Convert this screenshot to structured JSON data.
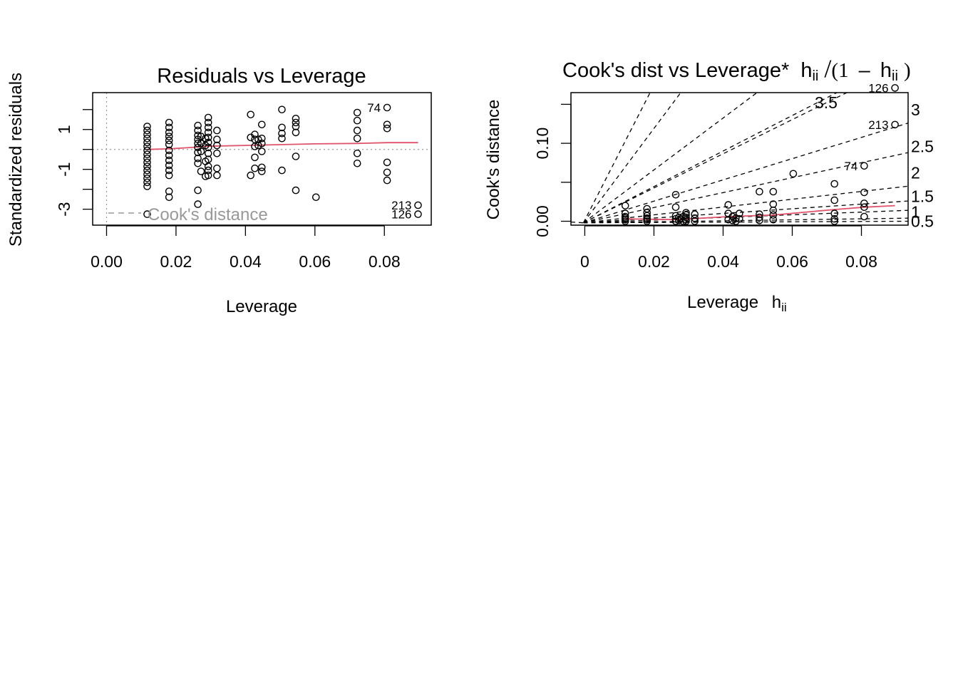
{
  "chart_data": [
    {
      "type": "scatter",
      "title": "Residuals vs Leverage",
      "xlabel": "Leverage",
      "ylabel": "Standardized residuals",
      "xlim": [
        -0.004,
        0.0935
      ],
      "ylim": [
        -3.8,
        2.85
      ],
      "xticks": [
        0,
        0.02,
        0.04,
        0.06,
        0.08
      ],
      "xtick_labels": [
        "0.00",
        "0.02",
        "0.04",
        "0.06",
        "0.08"
      ],
      "yticks": [
        -3,
        -2,
        -1,
        0,
        1,
        2
      ],
      "ytick_labels": {
        "-3": "-3",
        "-1": "-1",
        "1": "1"
      },
      "legend": {
        "text": "Cook's distance",
        "placement": "bottom-left",
        "color": "#999999"
      },
      "smooth_color": "#DF536B",
      "reference_line_color": "#999999",
      "points": [
        [
          0.0117,
          1.15
        ],
        [
          0.0117,
          0.95
        ],
        [
          0.0117,
          0.75
        ],
        [
          0.0117,
          0.55
        ],
        [
          0.0117,
          0.35
        ],
        [
          0.0117,
          0.15
        ],
        [
          0.0117,
          -0.05
        ],
        [
          0.0117,
          -0.25
        ],
        [
          0.0117,
          -0.45
        ],
        [
          0.0117,
          -0.65
        ],
        [
          0.0117,
          -0.85
        ],
        [
          0.0117,
          -1.05
        ],
        [
          0.0117,
          -1.25
        ],
        [
          0.0117,
          -1.45
        ],
        [
          0.0117,
          -1.65
        ],
        [
          0.0117,
          -1.85
        ],
        [
          0.0117,
          -3.25
        ],
        [
          0.018,
          1.35
        ],
        [
          0.018,
          1.1
        ],
        [
          0.018,
          0.85
        ],
        [
          0.018,
          0.65
        ],
        [
          0.018,
          0.45
        ],
        [
          0.018,
          0.25
        ],
        [
          0.018,
          -0.05
        ],
        [
          0.018,
          -0.3
        ],
        [
          0.018,
          -0.55
        ],
        [
          0.018,
          -0.8
        ],
        [
          0.018,
          -1.05
        ],
        [
          0.018,
          -1.3
        ],
        [
          0.018,
          -2.1
        ],
        [
          0.018,
          -2.4
        ],
        [
          0.0263,
          1.2
        ],
        [
          0.0263,
          0.95
        ],
        [
          0.0263,
          0.7
        ],
        [
          0.0263,
          0.5
        ],
        [
          0.0263,
          0.3
        ],
        [
          0.0263,
          0.1
        ],
        [
          0.0263,
          -0.15
        ],
        [
          0.0263,
          -0.45
        ],
        [
          0.0263,
          -0.7
        ],
        [
          0.0263,
          -2.05
        ],
        [
          0.0263,
          -2.75
        ],
        [
          0.0272,
          0.65
        ],
        [
          0.0272,
          0.3
        ],
        [
          0.0272,
          -0.1
        ],
        [
          0.0272,
          -1.1
        ],
        [
          0.0285,
          0.55
        ],
        [
          0.0285,
          0.2
        ],
        [
          0.0285,
          -0.6
        ],
        [
          0.0285,
          -1.35
        ],
        [
          0.0293,
          1.6
        ],
        [
          0.0293,
          1.35
        ],
        [
          0.0293,
          1.1
        ],
        [
          0.0293,
          0.85
        ],
        [
          0.0293,
          0.6
        ],
        [
          0.0293,
          0.35
        ],
        [
          0.0293,
          0.1
        ],
        [
          0.0293,
          -0.2
        ],
        [
          0.0293,
          -0.5
        ],
        [
          0.0293,
          -0.85
        ],
        [
          0.0293,
          -1.05
        ],
        [
          0.0293,
          -1.3
        ],
        [
          0.0318,
          0.95
        ],
        [
          0.0318,
          0.5
        ],
        [
          0.0318,
          0.2
        ],
        [
          0.0318,
          -0.2
        ],
        [
          0.0318,
          -0.95
        ],
        [
          0.0318,
          -1.3
        ],
        [
          0.0415,
          1.75
        ],
        [
          0.0415,
          0.6
        ],
        [
          0.0415,
          -1.3
        ],
        [
          0.0427,
          0.75
        ],
        [
          0.0427,
          0.5
        ],
        [
          0.0427,
          0.15
        ],
        [
          0.0427,
          -0.4
        ],
        [
          0.0427,
          -0.95
        ],
        [
          0.0437,
          0.5
        ],
        [
          0.0437,
          0.2
        ],
        [
          0.0447,
          1.25
        ],
        [
          0.0447,
          0.55
        ],
        [
          0.0447,
          0.3
        ],
        [
          0.0447,
          -0.1
        ],
        [
          0.0447,
          -0.9
        ],
        [
          0.0447,
          -1.1
        ],
        [
          0.0505,
          2.0
        ],
        [
          0.0505,
          1.1
        ],
        [
          0.0505,
          0.8
        ],
        [
          0.0505,
          0.55
        ],
        [
          0.0505,
          -1.05
        ],
        [
          0.0545,
          1.55
        ],
        [
          0.0545,
          1.35
        ],
        [
          0.0545,
          1.15
        ],
        [
          0.0545,
          0.85
        ],
        [
          0.0545,
          -0.35
        ],
        [
          0.0545,
          -2.05
        ],
        [
          0.0603,
          -2.4
        ],
        [
          0.0722,
          1.85
        ],
        [
          0.0722,
          1.45
        ],
        [
          0.0722,
          0.95
        ],
        [
          0.0722,
          0.55
        ],
        [
          0.0722,
          -0.2
        ],
        [
          0.0722,
          -0.7
        ],
        [
          0.0808,
          2.1
        ],
        [
          0.0808,
          1.25
        ],
        [
          0.0808,
          1.05
        ],
        [
          0.0808,
          -0.65
        ],
        [
          0.0808,
          -1.15
        ],
        [
          0.0808,
          -1.55
        ],
        [
          0.0897,
          -2.8
        ],
        [
          0.0897,
          -3.25
        ]
      ],
      "smooth": [
        [
          0.0117,
          0.0
        ],
        [
          0.018,
          0.03
        ],
        [
          0.0263,
          0.12
        ],
        [
          0.0293,
          0.16
        ],
        [
          0.04,
          0.2
        ],
        [
          0.05,
          0.24
        ],
        [
          0.06,
          0.28
        ],
        [
          0.072,
          0.3
        ],
        [
          0.0808,
          0.34
        ],
        [
          0.0897,
          0.34
        ]
      ],
      "labels": [
        {
          "text": "74",
          "x": 0.0808,
          "y": 2.1
        },
        {
          "text": "213",
          "x": 0.0897,
          "y": -2.8
        },
        {
          "text": "126",
          "x": 0.0897,
          "y": -3.25
        }
      ]
    },
    {
      "type": "scatter",
      "title_prefix": "Cook's dist vs Leverage*",
      "title_h": "h",
      "title_ii": "ii",
      "title_slash": "/",
      "title_open": "(1",
      "title_minus": "–",
      "title_close": ")",
      "xlabel": "Leverage",
      "xlabel_h": "h",
      "xlabel_ii": "ii",
      "ylabel": "Cook's distance",
      "xlim": [
        -0.004,
        0.0935
      ],
      "ylim": [
        -0.005,
        0.165
      ],
      "xticks": [
        0,
        0.02,
        0.04,
        0.06,
        0.08
      ],
      "xtick_labels": [
        "0",
        "0.02",
        "0.04",
        "0.06",
        "0.08"
      ],
      "yticks": [
        0,
        0.05,
        0.1,
        0.15
      ],
      "ytick_labels": {
        "0": "0.00",
        "0.1": "0.10"
      },
      "contour_levels": [
        "0.5",
        "1",
        "1.5",
        "2",
        "2.5",
        "3",
        "3.5"
      ],
      "right_axis_labels": [
        {
          "text": "0.5",
          "y": 0.0
        },
        {
          "text": "1",
          "y": 0.012
        },
        {
          "text": "1.5",
          "y": 0.032
        },
        {
          "text": "2",
          "y": 0.062
        },
        {
          "text": "2.5",
          "y": 0.096
        },
        {
          "text": "3",
          "y": 0.143
        }
      ],
      "inline_contour_label": {
        "text": "3.5",
        "x": 0.0665,
        "y": 0.152
      },
      "smooth_color": "#DF536B",
      "points": [
        [
          0.0117,
          0.02
        ],
        [
          0.0117,
          0.01
        ],
        [
          0.0117,
          0.006
        ],
        [
          0.0117,
          0.004
        ],
        [
          0.0117,
          0.002
        ],
        [
          0.0117,
          0.0
        ],
        [
          0.018,
          0.016
        ],
        [
          0.018,
          0.011
        ],
        [
          0.018,
          0.007
        ],
        [
          0.018,
          0.004
        ],
        [
          0.018,
          0.002
        ],
        [
          0.018,
          0.0
        ],
        [
          0.0263,
          0.034
        ],
        [
          0.0263,
          0.018
        ],
        [
          0.0263,
          0.007
        ],
        [
          0.0263,
          0.003
        ],
        [
          0.0263,
          0.0
        ],
        [
          0.0272,
          0.005
        ],
        [
          0.0272,
          0.001
        ],
        [
          0.0285,
          0.006
        ],
        [
          0.0285,
          0.0
        ],
        [
          0.0293,
          0.011
        ],
        [
          0.0293,
          0.008
        ],
        [
          0.0293,
          0.005
        ],
        [
          0.0293,
          0.002
        ],
        [
          0.0293,
          0.0
        ],
        [
          0.0318,
          0.009
        ],
        [
          0.0318,
          0.004
        ],
        [
          0.0318,
          0.0
        ],
        [
          0.0415,
          0.021
        ],
        [
          0.0415,
          0.01
        ],
        [
          0.0415,
          0.002
        ],
        [
          0.0427,
          0.006
        ],
        [
          0.0427,
          0.001
        ],
        [
          0.0437,
          0.004
        ],
        [
          0.0437,
          0.0
        ],
        [
          0.0447,
          0.01
        ],
        [
          0.0447,
          0.003
        ],
        [
          0.0505,
          0.038
        ],
        [
          0.0505,
          0.009
        ],
        [
          0.0505,
          0.005
        ],
        [
          0.0505,
          0.001
        ],
        [
          0.0545,
          0.038
        ],
        [
          0.0545,
          0.022
        ],
        [
          0.0545,
          0.014
        ],
        [
          0.0545,
          0.008
        ],
        [
          0.0545,
          0.002
        ],
        [
          0.0603,
          0.061
        ],
        [
          0.0722,
          0.048
        ],
        [
          0.0722,
          0.027
        ],
        [
          0.0722,
          0.01
        ],
        [
          0.0722,
          0.003
        ],
        [
          0.0722,
          0.0
        ],
        [
          0.0808,
          0.071
        ],
        [
          0.0808,
          0.037
        ],
        [
          0.0808,
          0.023
        ],
        [
          0.0808,
          0.018
        ],
        [
          0.0808,
          0.006
        ],
        [
          0.0897,
          0.171
        ],
        [
          0.0897,
          0.124
        ]
      ],
      "smooth": [
        [
          0.0117,
          0.003
        ],
        [
          0.0263,
          0.002
        ],
        [
          0.0415,
          0.006
        ],
        [
          0.0545,
          0.008
        ],
        [
          0.0722,
          0.015
        ],
        [
          0.0808,
          0.018
        ],
        [
          0.0897,
          0.02
        ]
      ],
      "labels": [
        {
          "text": "126",
          "x": 0.0897,
          "y": 0.171
        },
        {
          "text": "213",
          "x": 0.0897,
          "y": 0.124
        },
        {
          "text": "74",
          "x": 0.0808,
          "y": 0.071
        }
      ]
    }
  ]
}
